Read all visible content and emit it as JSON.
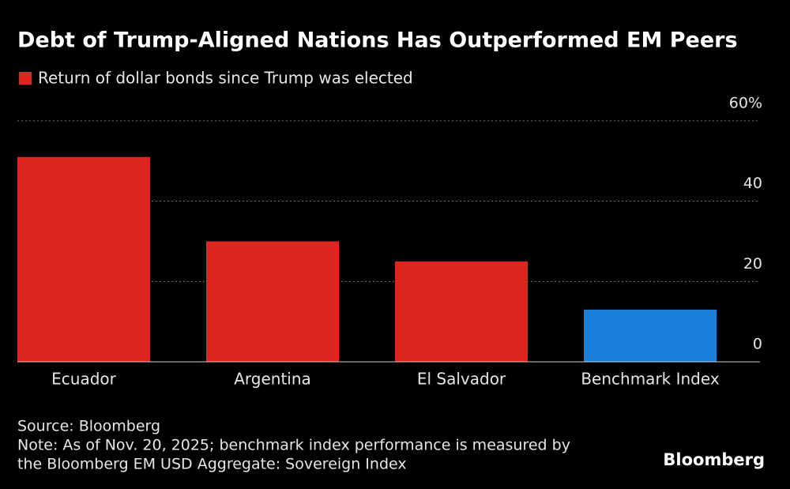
{
  "chart_data": {
    "type": "bar",
    "title": "Debt of Trump-Aligned Nations Has Outperformed EM Peers",
    "categories": [
      "Ecuador",
      "Argentina",
      "El Salvador",
      "Benchmark Index"
    ],
    "series": [
      {
        "name": "Return of dollar bonds since Trump was elected",
        "color": "#dc2620",
        "values": [
          51,
          30,
          25,
          13
        ]
      }
    ],
    "bar_colors": [
      "#dc2620",
      "#dc2620",
      "#dc2620",
      "#1a7fd8"
    ],
    "ylim": [
      0,
      60
    ],
    "yticks": [
      0,
      20,
      40,
      {
        "value": 60,
        "label": "60%"
      }
    ],
    "grid": true,
    "source": "Source: Bloomberg",
    "note": [
      "Note: As of Nov. 20, 2025; benchmark index performance is measured by",
      "the Bloomberg EM USD Aggregate: Sovereign Index"
    ],
    "brand": "Bloomberg"
  }
}
